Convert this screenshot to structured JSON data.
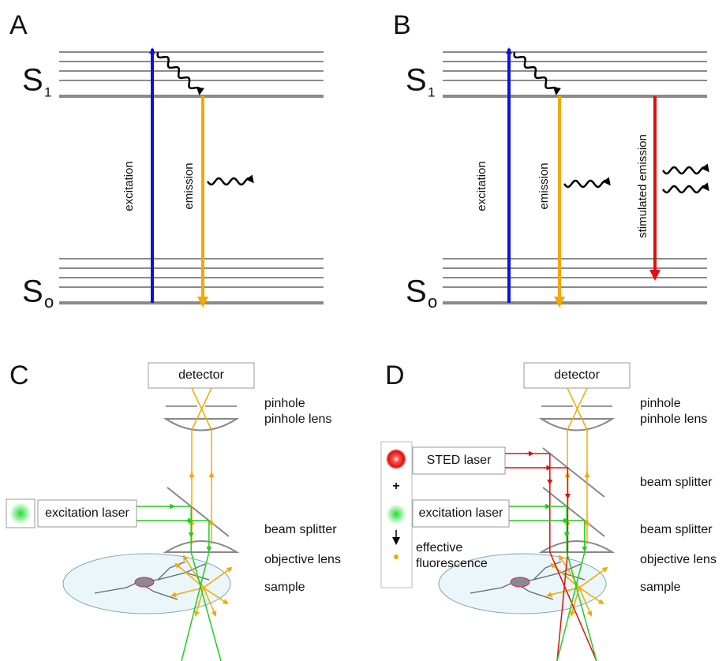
{
  "panels": [
    {
      "label": "A",
      "upper_level": {
        "symbol": "S",
        "subscript": "1"
      },
      "lower_level": {
        "symbol": "S",
        "subscript": "o"
      },
      "transitions": [
        "excitation",
        "emission"
      ]
    },
    {
      "label": "B",
      "upper_level": {
        "symbol": "S",
        "subscript": "1"
      },
      "lower_level": {
        "symbol": "S",
        "subscript": "o"
      },
      "transitions": [
        "excitation",
        "emission",
        "stimulated emission"
      ]
    },
    {
      "label": "C",
      "detector": "detector",
      "labels": [
        "pinhole",
        "pinhole lens",
        "beam splitter",
        "objective lens",
        "sample"
      ],
      "lasers": [
        "excitation laser"
      ]
    },
    {
      "label": "D",
      "detector": "detector",
      "labels": [
        "pinhole",
        "pinhole lens",
        "beam splitter",
        "beam splitter",
        "objective lens",
        "sample"
      ],
      "lasers": [
        "STED laser",
        "excitation laser"
      ],
      "legend": [
        "+",
        "effective",
        "fluorescence"
      ]
    }
  ]
}
